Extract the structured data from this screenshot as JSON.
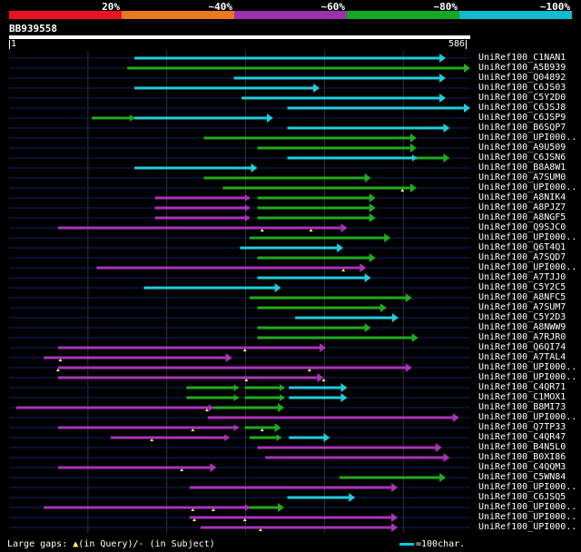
{
  "legend": {
    "segments": [
      {
        "label": "20%",
        "color": "#ee1122"
      },
      {
        "label": "~40%",
        "color": "#ee7722"
      },
      {
        "label": "~60%",
        "color": "#9933aa"
      },
      {
        "label": "~80%",
        "color": "#11aa22"
      },
      {
        "label": "~100%",
        "color": "#11bbcc"
      }
    ]
  },
  "query": {
    "name": "BB939558",
    "start_label": "1",
    "end_label": "586",
    "length": 586
  },
  "colors": {
    "cyan": "#22ccdd",
    "green": "#22aa22",
    "magenta": "#aa33bb",
    "gap_marker": "#ffff66",
    "row_line": "#112266",
    "grid_line": "#333333"
  },
  "hits": [
    {
      "label": "UniRef100_C1NAN1",
      "segs": [
        [
          160,
          555,
          "cyan"
        ]
      ],
      "marks": []
    },
    {
      "label": "UniRef100_A5B939",
      "segs": [
        [
          151,
          586,
          "green"
        ]
      ],
      "marks": []
    },
    {
      "label": "UniRef100_Q04892",
      "segs": [
        [
          286,
          555,
          "cyan"
        ]
      ],
      "marks": []
    },
    {
      "label": "UniRef100_C6JS03",
      "segs": [
        [
          160,
          395,
          "cyan"
        ]
      ],
      "marks": []
    },
    {
      "label": "UniRef100_C5Y2D0",
      "segs": [
        [
          296,
          555,
          "cyan"
        ]
      ],
      "marks": []
    },
    {
      "label": "UniRef100_C6JSJ8",
      "segs": [
        [
          354,
          586,
          "cyan"
        ]
      ],
      "marks": []
    },
    {
      "label": "UniRef100_C6JSP9",
      "segs": [
        [
          106,
          160,
          "green"
        ],
        [
          160,
          336,
          "cyan"
        ]
      ],
      "marks": []
    },
    {
      "label": "UniRef100_B6SQP7",
      "segs": [
        [
          354,
          560,
          "cyan"
        ]
      ],
      "marks": []
    },
    {
      "label": "UniRef100_UPI000..",
      "segs": [
        [
          248,
          518,
          "green"
        ]
      ],
      "marks": []
    },
    {
      "label": "UniRef100_A9U509",
      "segs": [
        [
          316,
          518,
          "green"
        ]
      ],
      "marks": []
    },
    {
      "label": "UniRef100_C6JSN6",
      "segs": [
        [
          354,
          518,
          "cyan"
        ],
        [
          518,
          560,
          "green"
        ]
      ],
      "marks": []
    },
    {
      "label": "UniRef100_B8A8W1",
      "segs": [
        [
          160,
          316,
          "cyan"
        ]
      ],
      "marks": []
    },
    {
      "label": "UniRef100_A7SUM0",
      "segs": [
        [
          248,
          460,
          "green"
        ]
      ],
      "marks": []
    },
    {
      "label": "UniRef100_UPI000..",
      "segs": [
        [
          272,
          518,
          "green"
        ]
      ],
      "marks": [
        500
      ]
    },
    {
      "label": "UniRef100_A8NIK4",
      "segs": [
        [
          186,
          306,
          "magenta"
        ],
        [
          316,
          466,
          "green"
        ]
      ],
      "marks": []
    },
    {
      "label": "UniRef100_A8PJZ7",
      "segs": [
        [
          186,
          306,
          "magenta"
        ],
        [
          316,
          466,
          "green"
        ]
      ],
      "marks": []
    },
    {
      "label": "UniRef100_A8NGF5",
      "segs": [
        [
          186,
          306,
          "magenta"
        ],
        [
          316,
          466,
          "green"
        ]
      ],
      "marks": []
    },
    {
      "label": "UniRef100_Q9SJC0",
      "segs": [
        [
          63,
          430,
          "magenta"
        ]
      ],
      "marks": [
        322,
        384
      ]
    },
    {
      "label": "UniRef100_UPI000..",
      "segs": [
        [
          306,
          485,
          "green"
        ]
      ],
      "marks": []
    },
    {
      "label": "UniRef100_Q6T4Q1",
      "segs": [
        [
          294,
          425,
          "cyan"
        ]
      ],
      "marks": []
    },
    {
      "label": "UniRef100_A7SQD7",
      "segs": [
        [
          316,
          466,
          "green"
        ]
      ],
      "marks": []
    },
    {
      "label": "UniRef100_UPI000..",
      "segs": [
        [
          112,
          454,
          "magenta"
        ]
      ],
      "marks": [
        425
      ]
    },
    {
      "label": "UniRef100_A7TJJ0",
      "segs": [
        [
          316,
          460,
          "cyan"
        ]
      ],
      "marks": []
    },
    {
      "label": "UniRef100_C5Y2C5",
      "segs": [
        [
          172,
          346,
          "cyan"
        ]
      ],
      "marks": []
    },
    {
      "label": "UniRef100_A8NFC5",
      "segs": [
        [
          306,
          512,
          "green"
        ]
      ],
      "marks": []
    },
    {
      "label": "UniRef100_A7SUM7",
      "segs": [
        [
          316,
          480,
          "green"
        ]
      ],
      "marks": []
    },
    {
      "label": "UniRef100_C5Y2D3",
      "segs": [
        [
          364,
          495,
          "cyan"
        ]
      ],
      "marks": []
    },
    {
      "label": "UniRef100_A8NWW9",
      "segs": [
        [
          316,
          460,
          "green"
        ]
      ],
      "marks": []
    },
    {
      "label": "UniRef100_A7RJR0",
      "segs": [
        [
          316,
          520,
          "green"
        ]
      ],
      "marks": []
    },
    {
      "label": "UniRef100_Q6QI74",
      "segs": [
        [
          63,
          403,
          "magenta"
        ]
      ],
      "marks": [
        300
      ]
    },
    {
      "label": "UniRef100_A7TAL4",
      "segs": [
        [
          45,
          284,
          "magenta"
        ]
      ],
      "marks": [
        66
      ]
    },
    {
      "label": "UniRef100_UPI000..",
      "segs": [
        [
          63,
          512,
          "magenta"
        ]
      ],
      "marks": [
        63,
        382
      ]
    },
    {
      "label": "UniRef100_UPI000..",
      "segs": [
        [
          63,
          400,
          "magenta"
        ]
      ],
      "marks": [
        302,
        400
      ]
    },
    {
      "label": "UniRef100_C4QR71",
      "segs": [
        [
          226,
          292,
          "green"
        ],
        [
          300,
          350,
          "green"
        ],
        [
          356,
          430,
          "cyan"
        ]
      ],
      "marks": []
    },
    {
      "label": "UniRef100_C1MOX1",
      "segs": [
        [
          226,
          292,
          "green"
        ],
        [
          300,
          350,
          "green"
        ],
        [
          356,
          430,
          "cyan"
        ]
      ],
      "marks": []
    },
    {
      "label": "UniRef100_B8MI73",
      "segs": [
        [
          10,
          260,
          "magenta"
        ],
        [
          260,
          350,
          "green"
        ]
      ],
      "marks": [
        252
      ]
    },
    {
      "label": "UniRef100_UPI000..",
      "segs": [
        [
          253,
          572,
          "magenta"
        ]
      ],
      "marks": []
    },
    {
      "label": "UniRef100_Q7TP33",
      "segs": [
        [
          63,
          292,
          "magenta"
        ],
        [
          300,
          346,
          "green"
        ]
      ],
      "marks": [
        234,
        322
      ]
    },
    {
      "label": "UniRef100_C4QR47",
      "segs": [
        [
          130,
          280,
          "magenta"
        ],
        [
          306,
          346,
          "green"
        ],
        [
          356,
          408,
          "cyan"
        ]
      ],
      "marks": [
        182
      ]
    },
    {
      "label": "UniRef100_B4N5L0",
      "segs": [
        [
          316,
          550,
          "magenta"
        ]
      ],
      "marks": []
    },
    {
      "label": "UniRef100_B0XI86",
      "segs": [
        [
          326,
          560,
          "magenta"
        ]
      ],
      "marks": []
    },
    {
      "label": "UniRef100_C4QQM3",
      "segs": [
        [
          63,
          264,
          "magenta"
        ]
      ],
      "marks": [
        220
      ]
    },
    {
      "label": "UniRef100_C5WN84",
      "segs": [
        [
          420,
          555,
          "green"
        ]
      ],
      "marks": []
    },
    {
      "label": "UniRef100_UPI000..",
      "segs": [
        [
          230,
          494,
          "magenta"
        ]
      ],
      "marks": []
    },
    {
      "label": "UniRef100_C6JSQ5",
      "segs": [
        [
          354,
          440,
          "cyan"
        ]
      ],
      "marks": []
    },
    {
      "label": "UniRef100_UPI000..",
      "segs": [
        [
          45,
          306,
          "magenta"
        ],
        [
          306,
          350,
          "green"
        ]
      ],
      "marks": [
        234,
        260
      ]
    },
    {
      "label": "UniRef100_UPI000..",
      "segs": [
        [
          230,
          494,
          "magenta"
        ]
      ],
      "marks": [
        236,
        300
      ]
    },
    {
      "label": "UniRef100_UPI000..",
      "segs": [
        [
          244,
          494,
          "magenta"
        ]
      ],
      "marks": [
        320
      ]
    }
  ],
  "footer": {
    "gaps_prefix": "Large gaps:",
    "gap_query_symbol": "▲",
    "gap_query_text": "(in Query)/-  (in Subject)",
    "scale_text": "=100char."
  }
}
